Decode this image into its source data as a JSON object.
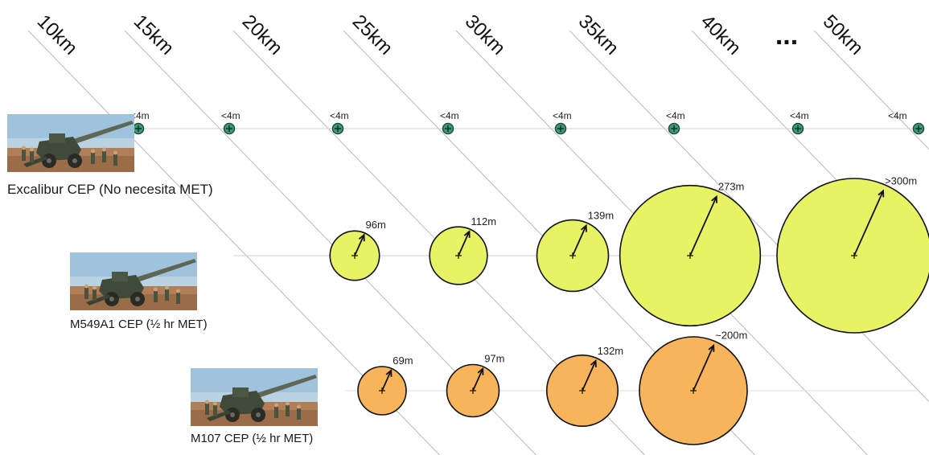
{
  "ranges": [
    "10km",
    "15km",
    "20km",
    "25km",
    "30km",
    "35km",
    "40km",
    "...",
    "50km"
  ],
  "rows": [
    {
      "name": "excalibur",
      "label": "Excalibur CEP (No necesita MET)",
      "color": "#3e9a7a",
      "points": [
        {
          "range": "10km",
          "cep": "<4m"
        },
        {
          "range": "15km",
          "cep": "<4m"
        },
        {
          "range": "20km",
          "cep": "<4m"
        },
        {
          "range": "25km",
          "cep": "<4m"
        },
        {
          "range": "30km",
          "cep": "<4m"
        },
        {
          "range": "35km",
          "cep": "<4m"
        },
        {
          "range": "40km",
          "cep": "<4m"
        },
        {
          "range": "50km",
          "cep": "<4m"
        }
      ]
    },
    {
      "name": "m549a1",
      "label": "M549A1 CEP (½ hr MET)",
      "color": "#e8f265",
      "points": [
        {
          "range": "20km",
          "cep": "96m",
          "cep_m": 96
        },
        {
          "range": "25km",
          "cep": "112m",
          "cep_m": 112
        },
        {
          "range": "30km",
          "cep": "139m",
          "cep_m": 139
        },
        {
          "range": "35km",
          "cep": "273m",
          "cep_m": 273
        },
        {
          "range": "40km",
          "cep": ">300m",
          "cep_m": 300
        }
      ]
    },
    {
      "name": "m107",
      "label": "M107 CEP (½ hr MET)",
      "color": "#f8b45a",
      "points": [
        {
          "range": "20km",
          "cep": "69m",
          "cep_m": 69
        },
        {
          "range": "25km",
          "cep": "97m",
          "cep_m": 97
        },
        {
          "range": "30km",
          "cep": "132m",
          "cep_m": 132
        },
        {
          "range": "35km",
          "cep": "~200m",
          "cep_m": 200
        }
      ]
    }
  ]
}
